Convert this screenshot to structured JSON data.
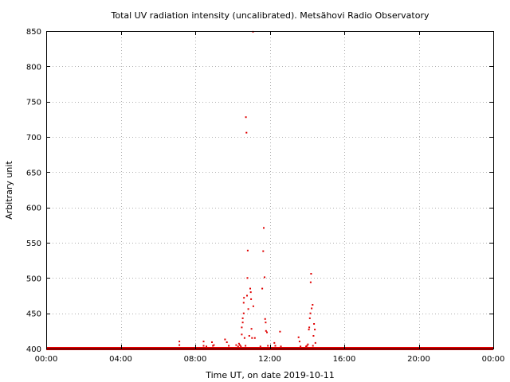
{
  "chart_data": {
    "type": "scatter",
    "title": "Total UV radiation intensity (uncalibrated). Metsähovi Radio Observatory",
    "xlabel": "Time UT, on date 2019-10-11",
    "ylabel": "Arbitrary unit",
    "xlim": [
      0,
      24
    ],
    "ylim": [
      400,
      850
    ],
    "x_ticks": [
      0,
      4,
      8,
      12,
      16,
      20,
      24
    ],
    "x_tick_labels": [
      "00:00",
      "04:00",
      "08:00",
      "12:00",
      "16:00",
      "20:00",
      "00:00"
    ],
    "y_ticks": [
      400,
      450,
      500,
      550,
      600,
      650,
      700,
      750,
      800,
      850
    ],
    "y_tick_labels": [
      "400",
      "450",
      "500",
      "550",
      "600",
      "650",
      "700",
      "750",
      "800",
      "850"
    ],
    "grid": true,
    "baseline": {
      "value": 400,
      "from": 0,
      "to": 24
    },
    "series": [
      {
        "color": "#e00000",
        "points": [
          [
            7.15,
            410
          ],
          [
            7.15,
            405
          ],
          [
            8.45,
            410
          ],
          [
            8.45,
            404
          ],
          [
            8.6,
            403
          ],
          [
            8.9,
            409
          ],
          [
            8.95,
            404
          ],
          [
            9.0,
            405
          ],
          [
            9.6,
            413
          ],
          [
            9.7,
            409
          ],
          [
            9.8,
            404
          ],
          [
            10.2,
            405
          ],
          [
            10.3,
            403
          ],
          [
            10.35,
            407
          ],
          [
            10.4,
            405
          ],
          [
            10.45,
            403
          ],
          [
            10.5,
            420
          ],
          [
            10.5,
            430
          ],
          [
            10.55,
            437
          ],
          [
            10.55,
            443
          ],
          [
            10.6,
            450
          ],
          [
            10.6,
            465
          ],
          [
            10.62,
            472
          ],
          [
            10.65,
            415
          ],
          [
            10.7,
            404
          ],
          [
            10.72,
            728
          ],
          [
            10.75,
            706
          ],
          [
            10.78,
            475
          ],
          [
            10.8,
            500
          ],
          [
            10.82,
            539
          ],
          [
            10.85,
            456
          ],
          [
            10.9,
            418
          ],
          [
            10.95,
            485
          ],
          [
            10.98,
            480
          ],
          [
            11.0,
            470
          ],
          [
            11.02,
            428
          ],
          [
            11.05,
            415
          ],
          [
            11.1,
            849
          ],
          [
            11.12,
            460
          ],
          [
            11.2,
            415
          ],
          [
            11.5,
            403
          ],
          [
            11.6,
            485
          ],
          [
            11.65,
            538
          ],
          [
            11.68,
            571
          ],
          [
            11.72,
            501
          ],
          [
            11.75,
            442
          ],
          [
            11.78,
            437
          ],
          [
            11.8,
            425
          ],
          [
            11.85,
            423
          ],
          [
            11.9,
            404
          ],
          [
            12.25,
            408
          ],
          [
            12.3,
            404
          ],
          [
            12.55,
            424
          ],
          [
            12.6,
            403
          ],
          [
            13.55,
            416
          ],
          [
            13.6,
            410
          ],
          [
            13.65,
            403
          ],
          [
            13.95,
            403
          ],
          [
            14.0,
            404
          ],
          [
            14.05,
            406
          ],
          [
            14.1,
            427
          ],
          [
            14.12,
            430
          ],
          [
            14.15,
            443
          ],
          [
            14.18,
            450
          ],
          [
            14.2,
            494
          ],
          [
            14.22,
            506
          ],
          [
            14.25,
            457
          ],
          [
            14.3,
            462
          ],
          [
            14.32,
            404
          ],
          [
            14.35,
            418
          ],
          [
            14.38,
            435
          ],
          [
            14.42,
            427
          ],
          [
            14.45,
            408
          ]
        ]
      }
    ]
  }
}
